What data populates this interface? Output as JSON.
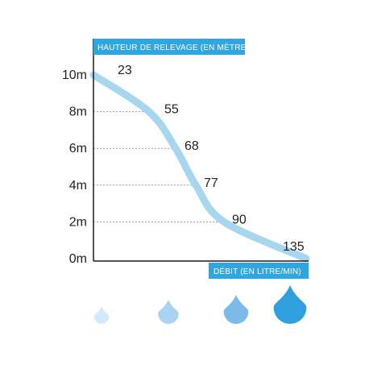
{
  "chart_data": {
    "type": "line",
    "title": "HAUTEUR DE RELEVAGE (EN MÈTRE)",
    "xlabel": "DÉBIT (EN LITRE/MIN)",
    "ylabel": "",
    "y_ticks": [
      "0m",
      "2m",
      "4m",
      "6m",
      "8m",
      "10m"
    ],
    "ylim": [
      0,
      10
    ],
    "grid": "dotted at labelled points",
    "series": [
      {
        "points": [
          {
            "x": 23,
            "y": 10,
            "label": "23"
          },
          {
            "x": 55,
            "y": 8,
            "label": "55"
          },
          {
            "x": 68,
            "y": 6,
            "label": "68"
          },
          {
            "x": 77,
            "y": 4,
            "label": "77"
          },
          {
            "x": 90,
            "y": 2,
            "label": "90"
          },
          {
            "x": 135,
            "y": 0,
            "label": "135"
          }
        ]
      }
    ]
  },
  "colors": {
    "curve": "#a7d6ef",
    "axis": "#1a1a1a",
    "title_bg": "#2fa6e0",
    "grid": "#9a9a9a"
  },
  "drops": [
    {
      "icon": "water-drop-icon",
      "color": "#d3ebf8"
    },
    {
      "icon": "water-drop-icon",
      "color": "#a9d4f1"
    },
    {
      "icon": "water-drop-icon",
      "color": "#7cbbe9"
    },
    {
      "icon": "water-drop-icon",
      "color": "#2f9fdd"
    }
  ]
}
